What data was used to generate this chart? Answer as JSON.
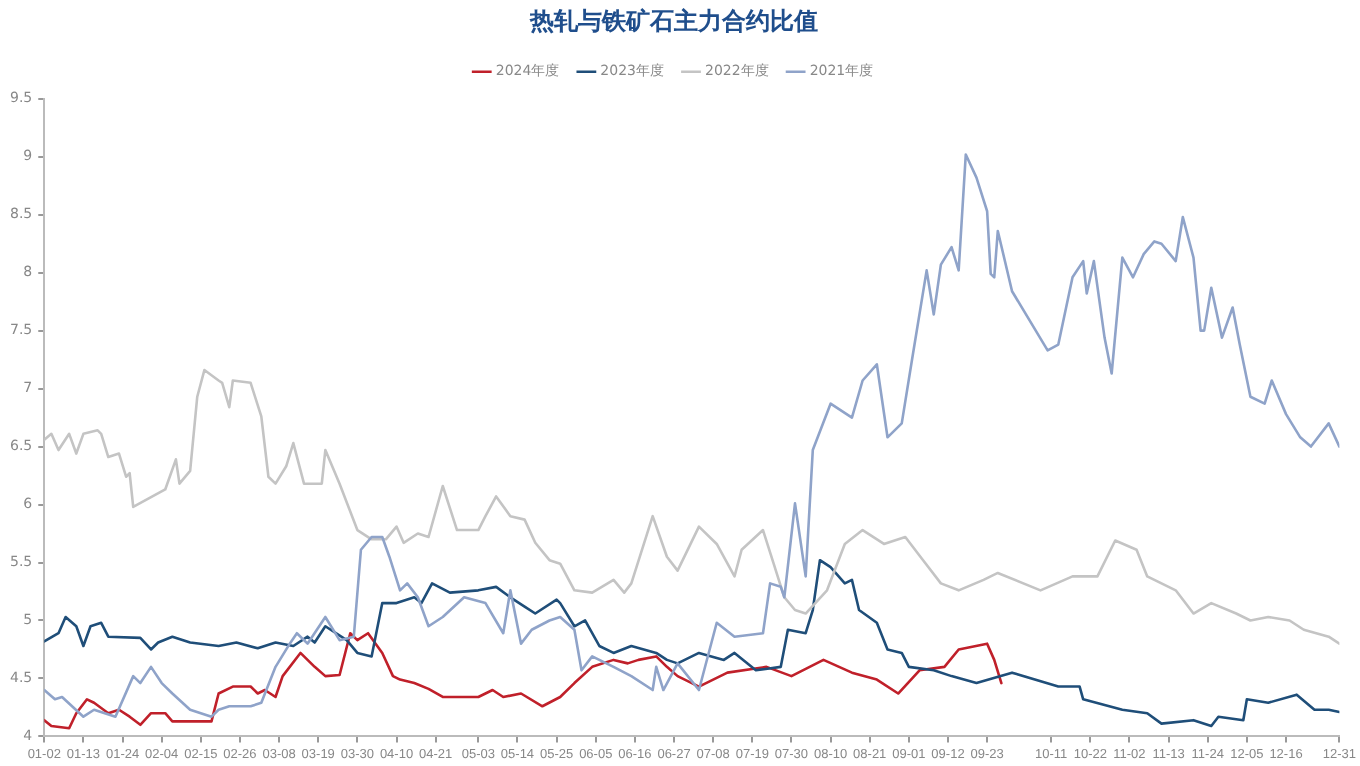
{
  "chart_data": {
    "type": "line",
    "title": "热轧与铁矿石主力合约比值",
    "legend": "top",
    "grid": false,
    "marker": "none",
    "line_style": "solid",
    "xlim": [
      "--01-02",
      "--12-31"
    ],
    "xticks": [
      {
        "value": "--01-02",
        "label": "01-02"
      },
      {
        "value": "--01-13",
        "label": "01-13"
      },
      {
        "value": "--01-24",
        "label": "01-24"
      },
      {
        "value": "--02-04",
        "label": "02-04"
      },
      {
        "value": "--02-15",
        "label": "02-15"
      },
      {
        "value": "--02-26",
        "label": "02-26"
      },
      {
        "value": "--03-08",
        "label": "03-08"
      },
      {
        "value": "--03-19",
        "label": "03-19"
      },
      {
        "value": "--03-30",
        "label": "03-30"
      },
      {
        "value": "--04-10",
        "label": "04-10"
      },
      {
        "value": "--04-21",
        "label": "04-21"
      },
      {
        "value": "--05-03",
        "label": "05-03"
      },
      {
        "value": "--05-14",
        "label": "05-14"
      },
      {
        "value": "--05-25",
        "label": "05-25"
      },
      {
        "value": "--06-05",
        "label": "06-05"
      },
      {
        "value": "--06-16",
        "label": "06-16"
      },
      {
        "value": "--06-27",
        "label": "06-27"
      },
      {
        "value": "--07-08",
        "label": "07-08"
      },
      {
        "value": "--07-19",
        "label": "07-19"
      },
      {
        "value": "--07-30",
        "label": "07-30"
      },
      {
        "value": "--08-10",
        "label": "08-10"
      },
      {
        "value": "--08-21",
        "label": "08-21"
      },
      {
        "value": "--09-01",
        "label": "09-01"
      },
      {
        "value": "--09-12",
        "label": "09-12"
      },
      {
        "value": "--09-23",
        "label": "09-23"
      },
      {
        "value": "--10-11",
        "label": "10-11"
      },
      {
        "value": "--10-22",
        "label": "10-22"
      },
      {
        "value": "--11-02",
        "label": "11-02"
      },
      {
        "value": "--11-13",
        "label": "11-13"
      },
      {
        "value": "--11-24",
        "label": "11-24"
      },
      {
        "value": "--12-05",
        "label": "12-05"
      },
      {
        "value": "--12-16",
        "label": "12-16"
      },
      {
        "value": "--12-31",
        "label": "12-31"
      }
    ],
    "ylim": [
      4,
      9.5
    ],
    "yticks": [
      4,
      4.5,
      5,
      5.5,
      6,
      6.5,
      7,
      7.5,
      8,
      8.5,
      9,
      9.5
    ],
    "series": [
      {
        "name": "2024年度",
        "color": "#c0202a",
        "x": [
          "--01-02",
          "--01-04",
          "--01-09",
          "--01-11",
          "--01-14",
          "--01-16",
          "--01-20",
          "--01-23",
          "--01-26",
          "--01-29",
          "--02-01",
          "--02-05",
          "--02-07",
          "--02-18",
          "--02-20",
          "--02-24",
          "--02-29",
          "--03-02",
          "--03-04",
          "--03-07",
          "--03-09",
          "--03-14",
          "--03-18",
          "--03-21",
          "--03-25",
          "--03-28",
          "--03-30",
          "--04-02",
          "--04-06",
          "--04-09",
          "--04-11",
          "--04-15",
          "--04-19",
          "--04-23",
          "--04-27",
          "--05-03",
          "--05-07",
          "--05-10",
          "--05-15",
          "--05-21",
          "--05-26",
          "--05-30",
          "--06-04",
          "--06-10",
          "--06-14",
          "--06-17",
          "--06-22",
          "--06-25",
          "--06-28",
          "--07-04",
          "--07-12",
          "--07-23",
          "--07-30",
          "--08-08",
          "--08-16",
          "--08-23",
          "--08-29",
          "--09-04",
          "--09-11",
          "--09-15",
          "--09-23",
          "--09-25",
          "--09-27"
        ],
        "values": [
          4.14,
          4.09,
          4.07,
          4.2,
          4.32,
          4.29,
          4.2,
          4.23,
          4.17,
          4.1,
          4.2,
          4.2,
          4.13,
          4.13,
          4.37,
          4.43,
          4.43,
          4.37,
          4.4,
          4.34,
          4.52,
          4.72,
          4.6,
          4.52,
          4.53,
          4.89,
          4.83,
          4.89,
          4.72,
          4.52,
          4.49,
          4.46,
          4.41,
          4.34,
          4.34,
          4.34,
          4.4,
          4.34,
          4.37,
          4.26,
          4.34,
          4.46,
          4.6,
          4.66,
          4.63,
          4.66,
          4.69,
          4.6,
          4.52,
          4.43,
          4.55,
          4.6,
          4.52,
          4.66,
          4.55,
          4.49,
          4.37,
          4.57,
          4.6,
          4.75,
          4.8,
          4.66,
          4.46
        ]
      },
      {
        "name": "2023年度",
        "color": "#1f4e79",
        "x": [
          "--01-02",
          "--01-06",
          "--01-08",
          "--01-11",
          "--01-13",
          "--01-15",
          "--01-18",
          "--01-20",
          "--01-29",
          "--02-01",
          "--02-03",
          "--02-07",
          "--02-12",
          "--02-20",
          "--02-25",
          "--03-02",
          "--03-07",
          "--03-12",
          "--03-16",
          "--03-18",
          "--03-21",
          "--03-27",
          "--03-30",
          "--04-03",
          "--04-06",
          "--04-10",
          "--04-15",
          "--04-17",
          "--04-20",
          "--04-25",
          "--05-03",
          "--05-08",
          "--05-12",
          "--05-16",
          "--05-19",
          "--05-25",
          "--05-26",
          "--05-30",
          "--06-02",
          "--06-06",
          "--06-10",
          "--06-15",
          "--06-22",
          "--06-25",
          "--06-28",
          "--07-04",
          "--07-11",
          "--07-14",
          "--07-20",
          "--07-27",
          "--07-29",
          "--08-03",
          "--08-05",
          "--08-07",
          "--08-10",
          "--08-14",
          "--08-16",
          "--08-18",
          "--08-23",
          "--08-26",
          "--08-30",
          "--09-01",
          "--09-08",
          "--09-13",
          "--09-20",
          "--09-30",
          "--10-13",
          "--10-19",
          "--10-20",
          "--10-31",
          "--11-07",
          "--11-11",
          "--11-20",
          "--11-25",
          "--11-27",
          "--12-04",
          "--12-05",
          "--12-11",
          "--12-19",
          "--12-24",
          "--12-28",
          "--12-31"
        ],
        "values": [
          4.82,
          4.89,
          5.03,
          4.95,
          4.78,
          4.95,
          4.98,
          4.86,
          4.85,
          4.75,
          4.81,
          4.86,
          4.81,
          4.78,
          4.81,
          4.76,
          4.81,
          4.78,
          4.86,
          4.81,
          4.95,
          4.83,
          4.72,
          4.69,
          5.15,
          5.15,
          5.2,
          5.15,
          5.32,
          5.24,
          5.26,
          5.29,
          5.2,
          5.12,
          5.06,
          5.18,
          5.15,
          4.95,
          5,
          4.78,
          4.72,
          4.78,
          4.72,
          4.66,
          4.63,
          4.72,
          4.66,
          4.72,
          4.57,
          4.6,
          4.92,
          4.89,
          5.09,
          5.52,
          5.46,
          5.32,
          5.35,
          5.09,
          4.98,
          4.75,
          4.72,
          4.6,
          4.57,
          4.52,
          4.46,
          4.55,
          4.43,
          4.43,
          4.32,
          4.23,
          4.2,
          4.11,
          4.14,
          4.09,
          4.17,
          4.14,
          4.32,
          4.29,
          4.36,
          4.23,
          4.23,
          4.21
        ]
      },
      {
        "name": "2022年度",
        "color": "#c4c4c4",
        "x": [
          "--01-02",
          "--01-04",
          "--01-06",
          "--01-09",
          "--01-11",
          "--01-13",
          "--01-17",
          "--01-18",
          "--01-20",
          "--01-23",
          "--01-25",
          "--01-26",
          "--01-27",
          "--02-05",
          "--02-08",
          "--02-09",
          "--02-12",
          "--02-14",
          "--02-16",
          "--02-20",
          "--02-21",
          "--02-23",
          "--02-24",
          "--02-29",
          "--03-03",
          "--03-05",
          "--03-07",
          "--03-10",
          "--03-12",
          "--03-15",
          "--03-20",
          "--03-21",
          "--03-25",
          "--03-30",
          "--04-03",
          "--04-07",
          "--04-10",
          "--04-12",
          "--04-16",
          "--04-19",
          "--04-23",
          "--04-27",
          "--05-03",
          "--05-05",
          "--05-08",
          "--05-12",
          "--05-16",
          "--05-19",
          "--05-23",
          "--05-26",
          "--05-30",
          "--06-04",
          "--06-10",
          "--06-13",
          "--06-15",
          "--06-21",
          "--06-25",
          "--06-28",
          "--07-04",
          "--07-09",
          "--07-14",
          "--07-16",
          "--07-22",
          "--07-25",
          "--07-28",
          "--07-31",
          "--08-03",
          "--08-09",
          "--08-14",
          "--08-19",
          "--08-25",
          "--08-31",
          "--09-05",
          "--09-10",
          "--09-15",
          "--09-22",
          "--09-26",
          "--10-08",
          "--10-17",
          "--10-24",
          "--10-29",
          "--11-04",
          "--11-07",
          "--11-15",
          "--11-20",
          "--11-25",
          "--12-02",
          "--12-06",
          "--12-11",
          "--12-17",
          "--12-21",
          "--12-28",
          "--12-31"
        ],
        "values": [
          6.56,
          6.61,
          6.47,
          6.61,
          6.44,
          6.61,
          6.64,
          6.61,
          6.41,
          6.44,
          6.24,
          6.27,
          5.98,
          6.13,
          6.39,
          6.18,
          6.29,
          6.93,
          7.16,
          7.07,
          7.05,
          6.84,
          7.07,
          7.05,
          6.76,
          6.24,
          6.18,
          6.33,
          6.53,
          6.18,
          6.18,
          6.47,
          6.18,
          5.78,
          5.7,
          5.7,
          5.81,
          5.67,
          5.75,
          5.72,
          6.16,
          5.78,
          5.78,
          5.9,
          6.07,
          5.9,
          5.87,
          5.67,
          5.52,
          5.49,
          5.26,
          5.24,
          5.35,
          5.24,
          5.32,
          5.9,
          5.55,
          5.43,
          5.81,
          5.66,
          5.38,
          5.61,
          5.78,
          5.49,
          5.2,
          5.09,
          5.06,
          5.26,
          5.66,
          5.78,
          5.66,
          5.72,
          5.52,
          5.32,
          5.26,
          5.35,
          5.41,
          5.26,
          5.38,
          5.38,
          5.69,
          5.61,
          5.38,
          5.26,
          5.06,
          5.15,
          5.06,
          5,
          5.03,
          5,
          4.92,
          4.86,
          4.8
        ]
      },
      {
        "name": "2021年度",
        "color": "#8fa3c9",
        "x": [
          "--01-02",
          "--01-05",
          "--01-07",
          "--01-13",
          "--01-16",
          "--01-22",
          "--01-27",
          "--01-29",
          "--02-01",
          "--02-04",
          "--02-07",
          "--02-12",
          "--02-18",
          "--02-20",
          "--02-23",
          "--02-29",
          "--03-03",
          "--03-07",
          "--03-11",
          "--03-13",
          "--03-16",
          "--03-21",
          "--03-25",
          "--03-29",
          "--03-31",
          "--04-03",
          "--04-06",
          "--04-08",
          "--04-11",
          "--04-13",
          "--04-16",
          "--04-19",
          "--04-23",
          "--04-29",
          "--05-05",
          "--05-10",
          "--05-12",
          "--05-15",
          "--05-18",
          "--05-23",
          "--05-26",
          "--05-30",
          "--06-01",
          "--06-04",
          "--06-10",
          "--06-15",
          "--06-21",
          "--06-22",
          "--06-24",
          "--06-28",
          "--07-04",
          "--07-09",
          "--07-14",
          "--07-22",
          "--07-24",
          "--07-27",
          "--07-28",
          "--07-31",
          "--08-03",
          "--08-05",
          "--08-10",
          "--08-16",
          "--08-19",
          "--08-23",
          "--08-26",
          "--08-30",
          "--09-02",
          "--09-06",
          "--09-08",
          "--09-10",
          "--09-13",
          "--09-15",
          "--09-17",
          "--09-20",
          "--09-23",
          "--09-24",
          "--09-25",
          "--09-26",
          "--09-30",
          "--10-10",
          "--10-13",
          "--10-17",
          "--10-20",
          "--10-21",
          "--10-23",
          "--10-26",
          "--10-28",
          "--10-31",
          "--11-03",
          "--11-06",
          "--11-09",
          "--11-11",
          "--11-15",
          "--11-17",
          "--11-20",
          "--11-22",
          "--11-23",
          "--11-25",
          "--11-28",
          "--12-01",
          "--12-03",
          "--12-06",
          "--12-10",
          "--12-12",
          "--12-16",
          "--12-20",
          "--12-23",
          "--12-28",
          "--12-31"
        ],
        "values": [
          4.4,
          4.32,
          4.34,
          4.17,
          4.23,
          4.17,
          4.52,
          4.46,
          4.6,
          4.46,
          4.37,
          4.23,
          4.17,
          4.23,
          4.26,
          4.26,
          4.29,
          4.6,
          4.8,
          4.89,
          4.8,
          5.03,
          4.83,
          4.86,
          5.61,
          5.72,
          5.72,
          5.55,
          5.26,
          5.32,
          5.2,
          4.95,
          5.03,
          5.2,
          5.15,
          4.89,
          5.26,
          4.8,
          4.92,
          5,
          5.03,
          4.92,
          4.57,
          4.69,
          4.6,
          4.52,
          4.4,
          4.6,
          4.4,
          4.63,
          4.4,
          4.98,
          4.86,
          4.89,
          5.32,
          5.29,
          5.2,
          6.01,
          5.38,
          6.47,
          6.87,
          6.75,
          7.07,
          7.21,
          6.58,
          6.7,
          7.27,
          8.02,
          7.64,
          8.07,
          8.22,
          8.02,
          9.02,
          8.82,
          8.53,
          7.99,
          7.96,
          8.36,
          7.84,
          7.33,
          7.38,
          7.96,
          8.1,
          7.82,
          8.1,
          7.44,
          7.13,
          8.13,
          7.96,
          8.16,
          8.27,
          8.25,
          8.1,
          8.48,
          8.13,
          7.5,
          7.5,
          7.87,
          7.44,
          7.7,
          7.38,
          6.93,
          6.87,
          7.07,
          6.78,
          6.58,
          6.5,
          6.7,
          6.5
        ]
      }
    ]
  }
}
